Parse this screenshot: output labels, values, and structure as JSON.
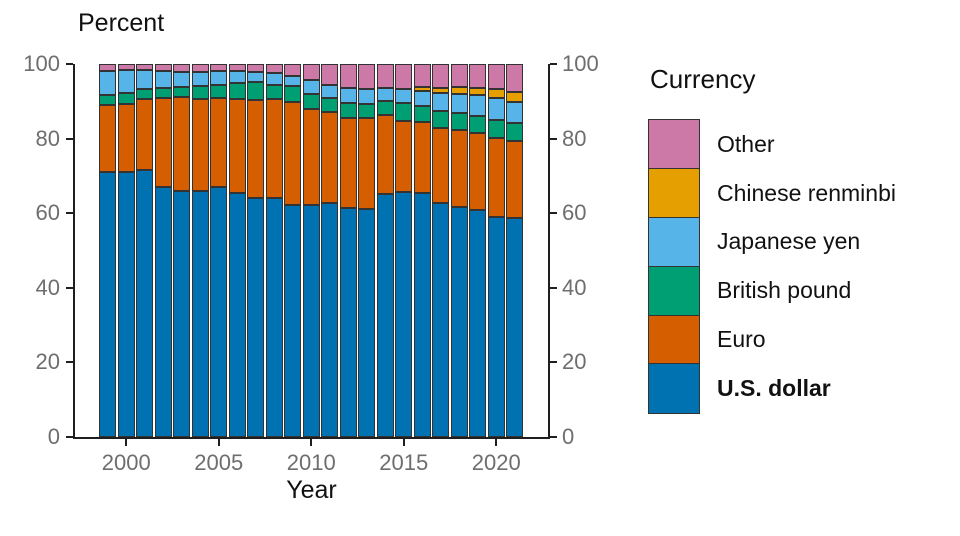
{
  "chart": {
    "y_axis_title": "Percent",
    "x_axis_title": "Year",
    "y_ticks": [
      0,
      20,
      40,
      60,
      80,
      100
    ],
    "x_ticks": [
      2000,
      2005,
      2010,
      2015,
      2020
    ]
  },
  "legend": {
    "title": "Currency",
    "items": [
      {
        "label": "Other",
        "color": "#CC79A7",
        "bold": false
      },
      {
        "label": "Chinese renminbi",
        "color": "#E69F00",
        "bold": false
      },
      {
        "label": "Japanese yen",
        "color": "#56B4E9",
        "bold": false
      },
      {
        "label": "British pound",
        "color": "#009E73",
        "bold": false
      },
      {
        "label": "Euro",
        "color": "#D55E00",
        "bold": false
      },
      {
        "label": "U.S. dollar",
        "color": "#0072B2",
        "bold": true
      }
    ]
  },
  "chart_data": {
    "type": "bar",
    "stacked": true,
    "title": "",
    "xlabel": "Year",
    "ylabel": "Percent",
    "ylim": [
      0,
      100
    ],
    "grid": false,
    "legend_position": "right",
    "dual_y_axis": true,
    "categories": [
      1999,
      2000,
      2001,
      2002,
      2003,
      2004,
      2005,
      2006,
      2007,
      2008,
      2009,
      2010,
      2011,
      2012,
      2013,
      2014,
      2015,
      2016,
      2017,
      2018,
      2019,
      2020,
      2021
    ],
    "stack_order_bottom_to_top": [
      "U.S. dollar",
      "Euro",
      "British pound",
      "Japanese yen",
      "Chinese renminbi",
      "Other"
    ],
    "series": [
      {
        "name": "U.S. dollar",
        "color": "#0072B2",
        "values": [
          71.0,
          71.1,
          71.5,
          67.1,
          65.9,
          65.9,
          66.9,
          65.5,
          64.1,
          64.1,
          62.1,
          62.2,
          62.7,
          61.5,
          61.2,
          65.1,
          65.7,
          65.4,
          62.7,
          61.7,
          60.8,
          58.9,
          58.8
        ]
      },
      {
        "name": "Euro",
        "color": "#D55E00",
        "values": [
          17.9,
          18.3,
          19.2,
          23.8,
          25.2,
          24.8,
          24.0,
          25.1,
          26.3,
          26.4,
          27.7,
          25.8,
          24.4,
          24.1,
          24.2,
          21.2,
          19.1,
          19.1,
          20.2,
          20.7,
          20.6,
          21.3,
          20.6
        ]
      },
      {
        "name": "British pound",
        "color": "#009E73",
        "values": [
          2.9,
          2.8,
          2.7,
          2.8,
          2.8,
          3.4,
          3.6,
          4.4,
          4.7,
          4.0,
          4.2,
          3.9,
          3.8,
          4.0,
          4.0,
          3.7,
          4.7,
          4.3,
          4.5,
          4.4,
          4.6,
          4.7,
          4.8
        ]
      },
      {
        "name": "Japanese yen",
        "color": "#56B4E9",
        "values": [
          6.4,
          6.1,
          5.0,
          4.4,
          3.9,
          3.8,
          3.6,
          3.1,
          2.9,
          3.1,
          2.9,
          3.7,
          3.6,
          4.1,
          3.8,
          3.5,
          3.8,
          4.0,
          4.9,
          5.2,
          5.7,
          6.0,
          5.6
        ]
      },
      {
        "name": "Chinese renminbi",
        "color": "#E69F00",
        "values": [
          0,
          0,
          0,
          0,
          0,
          0,
          0,
          0,
          0,
          0,
          0,
          0,
          0,
          0,
          0,
          0,
          0,
          1.1,
          1.2,
          1.9,
          1.9,
          2.3,
          2.8
        ]
      },
      {
        "name": "Other",
        "color": "#CC79A7",
        "values": [
          1.8,
          1.7,
          1.6,
          1.9,
          2.2,
          2.1,
          1.9,
          1.9,
          2.0,
          2.4,
          3.1,
          4.4,
          5.5,
          6.3,
          6.8,
          6.5,
          6.7,
          6.1,
          6.5,
          6.1,
          6.4,
          6.8,
          7.4
        ]
      }
    ]
  }
}
